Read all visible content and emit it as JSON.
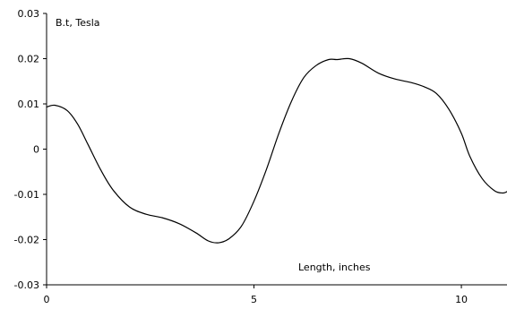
{
  "chart_data": {
    "type": "line",
    "title": "",
    "ylabel": "B.t, Tesla",
    "xlabel": "Length, inches",
    "xlim": [
      0,
      11.1
    ],
    "ylim": [
      -0.03,
      0.03
    ],
    "grid": false,
    "x_ticks": [
      0,
      5,
      10
    ],
    "x_tick_labels": [
      "0",
      "5",
      "10"
    ],
    "y_ticks": [
      0.03,
      0.02,
      0.01,
      0,
      -0.01,
      -0.02,
      -0.03
    ],
    "y_tick_labels": [
      "0.03",
      "0.02",
      "0.01",
      "0",
      "-0.01",
      "-0.02",
      "-0.03"
    ],
    "series": [
      {
        "color": "#000000",
        "x": [
          0,
          0.2,
          0.5,
          0.75,
          1.0,
          1.3,
          1.6,
          2.0,
          2.4,
          2.8,
          3.2,
          3.6,
          3.9,
          4.15,
          4.4,
          4.7,
          5.0,
          5.3,
          5.6,
          5.9,
          6.2,
          6.5,
          6.8,
          7.0,
          7.3,
          7.6,
          8.0,
          8.4,
          8.8,
          9.1,
          9.4,
          9.7,
          10.0,
          10.2,
          10.5,
          10.8,
          11.0,
          11.1
        ],
        "y": [
          0.0093,
          0.0097,
          0.0085,
          0.0055,
          0.001,
          -0.0045,
          -0.009,
          -0.0128,
          -0.0144,
          -0.0152,
          -0.0165,
          -0.0185,
          -0.0203,
          -0.0207,
          -0.0198,
          -0.017,
          -0.0115,
          -0.0045,
          0.0035,
          0.0105,
          0.0158,
          0.0185,
          0.0198,
          0.0198,
          0.02,
          0.019,
          0.0168,
          0.0155,
          0.0147,
          0.0138,
          0.0123,
          0.0088,
          0.0035,
          -0.0015,
          -0.0065,
          -0.0092,
          -0.0097,
          -0.0094
        ]
      }
    ]
  }
}
